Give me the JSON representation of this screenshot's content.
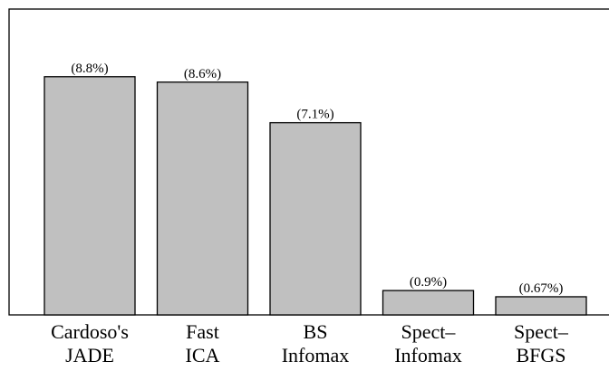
{
  "chart_data": {
    "type": "bar",
    "categories": [
      [
        "Cardoso's",
        "JADE"
      ],
      [
        "Fast",
        "ICA"
      ],
      [
        "BS",
        "Infomax"
      ],
      [
        "Spect–",
        "Infomax"
      ],
      [
        "Spect–",
        "BFGS"
      ]
    ],
    "values": [
      8.8,
      8.6,
      7.1,
      0.9,
      0.67
    ],
    "data_labels": [
      "(8.8%)",
      "(8.6%)",
      "(7.1%)",
      "(0.9%)",
      "(0.67%)"
    ],
    "title": "",
    "xlabel": "",
    "ylabel": "",
    "ylim": [
      0,
      11.3
    ],
    "grid": false,
    "legend": "none",
    "colors": {
      "bar_fill": "#c0c0c0",
      "bar_stroke": "#000000"
    }
  }
}
